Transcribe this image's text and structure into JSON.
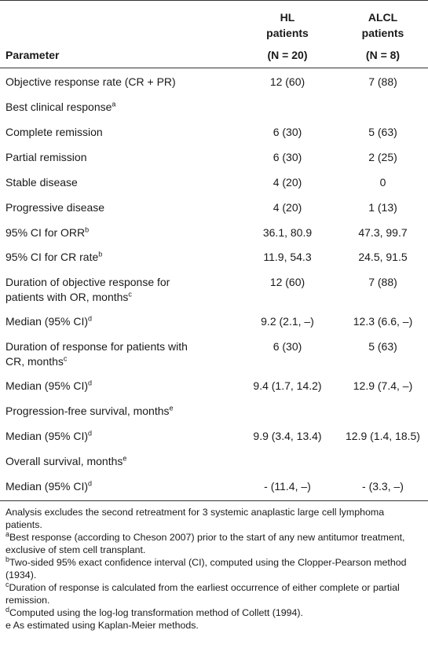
{
  "header": {
    "parameter": "Parameter",
    "hl_line1": "HL",
    "hl_line2": "patients",
    "hl_n": "(N = 20)",
    "alcl_line1": "ALCL",
    "alcl_line2": "patients",
    "alcl_n": "(N = 8)"
  },
  "rows": [
    {
      "param": "Objective response rate (CR + PR)",
      "sup": "",
      "param2": "",
      "sup2": "",
      "hl": "12 (60)",
      "alcl": "7 (88)"
    },
    {
      "param": "Best clinical response",
      "sup": "a",
      "param2": "",
      "sup2": "",
      "hl": "",
      "alcl": ""
    },
    {
      "param": "Complete remission",
      "sup": "",
      "param2": "",
      "sup2": "",
      "hl": "6 (30)",
      "alcl": "5 (63)"
    },
    {
      "param": "Partial remission",
      "sup": "",
      "param2": "",
      "sup2": "",
      "hl": "6 (30)",
      "alcl": "2 (25)"
    },
    {
      "param": "Stable disease",
      "sup": "",
      "param2": "",
      "sup2": "",
      "hl": "4 (20)",
      "alcl": "0"
    },
    {
      "param": "Progressive disease",
      "sup": "",
      "param2": "",
      "sup2": "",
      "hl": "4 (20)",
      "alcl": "1 (13)"
    },
    {
      "param": "95% CI for ORR",
      "sup": "b",
      "param2": "",
      "sup2": "",
      "hl": "36.1, 80.9",
      "alcl": "47.3, 99.7"
    },
    {
      "param": "95% CI for CR rate",
      "sup": "b",
      "param2": "",
      "sup2": "",
      "hl": "11.9, 54.3",
      "alcl": "24.5, 91.5"
    },
    {
      "param": "Duration of objective response for",
      "sup": "",
      "param2": "patients with OR, months",
      "sup2": "c",
      "hl": "12 (60)",
      "alcl": "7 (88)"
    },
    {
      "param": "Median (95% CI)",
      "sup": "d",
      "param2": "",
      "sup2": "",
      "hl": "9.2 (2.1, –)",
      "alcl": "12.3 (6.6, –)"
    },
    {
      "param": "Duration of response for patients with",
      "sup": "",
      "param2": "CR, months",
      "sup2": "c",
      "hl": "6 (30)",
      "alcl": "5 (63)"
    },
    {
      "param": "Median (95% CI)",
      "sup": "d",
      "param2": "",
      "sup2": "",
      "hl": "9.4 (1.7, 14.2)",
      "alcl": "12.9 (7.4, –)"
    },
    {
      "param": "Progression-free survival, months",
      "sup": "e",
      "param2": "",
      "sup2": "",
      "hl": "",
      "alcl": ""
    },
    {
      "param": "Median (95% CI)",
      "sup": "d",
      "param2": "",
      "sup2": "",
      "hl": "9.9 (3.4, 13.4)",
      "alcl": "12.9 (1.4, 18.5)"
    },
    {
      "param": "Overall survival, months",
      "sup": "e",
      "param2": "",
      "sup2": "",
      "hl": "",
      "alcl": ""
    },
    {
      "param": "Median (95% CI)",
      "sup": "d",
      "param2": "",
      "sup2": "",
      "hl": "- (11.4, –)",
      "alcl": "- (3.3, –)"
    }
  ],
  "footnotes": {
    "analysis": "Analysis excludes the second retreatment for 3 systemic anaplastic large cell lymphoma patients.",
    "a_mark": "a",
    "a": "Best response (according to Cheson 2007) prior to the start of any new antitumor treatment, exclusive of stem cell transplant.",
    "b_mark": "b",
    "b": "Two-sided 95% exact confidence interval (CI), computed using the Clopper-Pearson method (1934).",
    "c_mark": "c",
    "c": "Duration of response is calculated from the earliest occurrence of either complete or partial remission.",
    "d_mark": "d",
    "d": "Computed using the log-log transformation method of Collett (1994).",
    "e": "e As estimated using Kaplan-Meier methods."
  }
}
